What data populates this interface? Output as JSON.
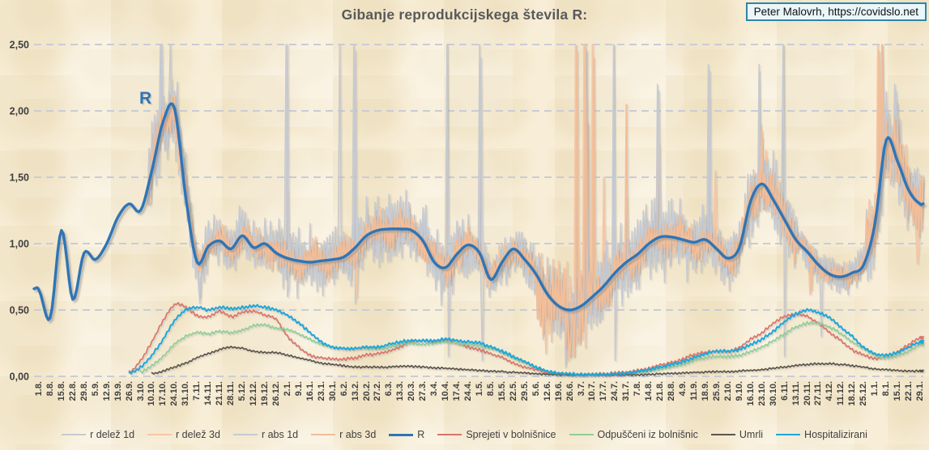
{
  "header": {
    "attribution": "Peter Malovrh, https://covidslo.net"
  },
  "annotation": {
    "r_label": "R"
  },
  "chart_data": {
    "type": "line",
    "title": "Gibanje reprodukcijskega števila R:",
    "xlabel": "",
    "ylabel": "",
    "ylim": [
      0,
      2.5
    ],
    "grid": "horizontal-dashed",
    "grid_color": "#C9CCD6",
    "legend_position": "bottom",
    "y_ticks": [
      {
        "v": 0.0,
        "label": "0,00"
      },
      {
        "v": 0.5,
        "label": "0,50"
      },
      {
        "v": 1.0,
        "label": "1,00"
      },
      {
        "v": 1.5,
        "label": "1,50"
      },
      {
        "v": 2.0,
        "label": "2,00"
      },
      {
        "v": 2.5,
        "label": "2,50"
      }
    ],
    "x_labels": [
      "1.8.",
      "8.8.",
      "15.8.",
      "22.8.",
      "29.8.",
      "5.9.",
      "12.9.",
      "19.9.",
      "26.9.",
      "3.10.",
      "10.10.",
      "17.10.",
      "24.10.",
      "31.10.",
      "7.11.",
      "14.11.",
      "21.11.",
      "28.11.",
      "5.12.",
      "12.12.",
      "19.12.",
      "26.12.",
      "2.1.",
      "9.1.",
      "16.1.",
      "23.1.",
      "30.1.",
      "6.2.",
      "13.2.",
      "20.2.",
      "27.2.",
      "6.3.",
      "13.3.",
      "20.3.",
      "27.3.",
      "3.4.",
      "10.4.",
      "17.4.",
      "24.4.",
      "1.5.",
      "8.5.",
      "15.5.",
      "22.5.",
      "29.5.",
      "5.6.",
      "12.6.",
      "19.6.",
      "26.6.",
      "3.7.",
      "10.7.",
      "17.7.",
      "24.7.",
      "31.7.",
      "7.8.",
      "14.8.",
      "21.8.",
      "28.8.",
      "4.9.",
      "11.9.",
      "18.9.",
      "25.9.",
      "2.10.",
      "9.10.",
      "16.10.",
      "23.10.",
      "30.10.",
      "6.11.",
      "13.11.",
      "20.11.",
      "27.11.",
      "4.12.",
      "11.12.",
      "18.12.",
      "25.12.",
      "1.1.",
      "8.1.",
      "15.1.",
      "22.1.",
      "29.1."
    ],
    "series": [
      {
        "name": "r delež 1d",
        "color": "#C9C9CE",
        "width": 1.5,
        "type": "noisy",
        "base": "R",
        "start": 9.6,
        "seed": 7,
        "amp_segments": [
          [
            9.6,
            0
          ],
          [
            13,
            0.3
          ],
          [
            21,
            0.18
          ],
          [
            30,
            0.22
          ],
          [
            38,
            0.22
          ],
          [
            44,
            0.18
          ],
          [
            49,
            0.28
          ],
          [
            57,
            0.25
          ],
          [
            62,
            0.22
          ],
          [
            67,
            0.25
          ],
          [
            73,
            0.12
          ],
          [
            79,
            0.3
          ]
        ],
        "spikes": [
          [
            10.7,
            2.5
          ],
          [
            11.6,
            2.5
          ],
          [
            14.2,
            0.55
          ],
          [
            21.9,
            2.5
          ],
          [
            22.05,
            0.6
          ],
          [
            26.6,
            2.5
          ],
          [
            27.9,
            2.5
          ],
          [
            28.05,
            0.55
          ],
          [
            36.1,
            2.5
          ],
          [
            36.25,
            0.15
          ],
          [
            39.05,
            2.5
          ],
          [
            39.2,
            0.12
          ],
          [
            46.6,
            0.07
          ],
          [
            47.55,
            2.5
          ],
          [
            47.7,
            0.3
          ],
          [
            50.85,
            2.5
          ],
          [
            51.0,
            0.12
          ],
          [
            54.8,
            2.2
          ],
          [
            59.3,
            2.35
          ],
          [
            63.7,
            2.35
          ],
          [
            65.85,
            2.5
          ],
          [
            66.0,
            0.15
          ],
          [
            69.3,
            0.3
          ],
          [
            75.8,
            2.2
          ]
        ]
      },
      {
        "name": "r delež 3d",
        "color": "#F5C7A4",
        "width": 1.8,
        "type": "noisy",
        "base": "R",
        "start": 9.6,
        "seed": 11,
        "amp_segments": [
          [
            9.6,
            0
          ],
          [
            13,
            0.16
          ],
          [
            21,
            0.1
          ],
          [
            30,
            0.13
          ],
          [
            38,
            0.13
          ],
          [
            44,
            0.1
          ],
          [
            49,
            0.35
          ],
          [
            57,
            0.15
          ],
          [
            62,
            0.12
          ],
          [
            67,
            0.16
          ],
          [
            73,
            0.08
          ],
          [
            79,
            0.25
          ]
        ],
        "spikes": [
          [
            22.0,
            1.4
          ],
          [
            28.1,
            0.6
          ],
          [
            46.9,
            0.12
          ],
          [
            47.5,
            2.5
          ],
          [
            48.3,
            2.5
          ],
          [
            48.65,
            1.9
          ],
          [
            49.0,
            2.5
          ],
          [
            50.0,
            1.5
          ],
          [
            52.0,
            1.35
          ],
          [
            54.9,
            1.75
          ],
          [
            59.9,
            1.55
          ],
          [
            63.9,
            1.9
          ],
          [
            64.4,
            1.7
          ],
          [
            68.3,
            0.62
          ],
          [
            74.3,
            2.5
          ],
          [
            74.6,
            2.5
          ],
          [
            76.0,
            1.95
          ],
          [
            77.8,
            0.85
          ]
        ]
      },
      {
        "name": "r abs 1d",
        "color": "#C5CAD3",
        "width": 1.5,
        "type": "noisy",
        "base": "R",
        "start": 9.6,
        "seed": 23,
        "amp_segments": [
          [
            9.6,
            0
          ],
          [
            13,
            0.28
          ],
          [
            21,
            0.17
          ],
          [
            30,
            0.21
          ],
          [
            38,
            0.21
          ],
          [
            44,
            0.17
          ],
          [
            49,
            0.26
          ],
          [
            57,
            0.24
          ],
          [
            62,
            0.21
          ],
          [
            67,
            0.24
          ],
          [
            73,
            0.11
          ],
          [
            79,
            0.28
          ]
        ],
        "spikes": [
          [
            10.9,
            2.5
          ],
          [
            14.25,
            0.6
          ],
          [
            21.95,
            2.5
          ],
          [
            27.95,
            2.45
          ],
          [
            36.15,
            2.5
          ],
          [
            39.1,
            2.4
          ],
          [
            46.65,
            0.1
          ],
          [
            48.45,
            2.45
          ],
          [
            50.9,
            2.5
          ],
          [
            54.85,
            2.15
          ],
          [
            59.35,
            2.3
          ],
          [
            63.75,
            2.3
          ],
          [
            65.9,
            2.5
          ],
          [
            75.85,
            2.15
          ]
        ]
      },
      {
        "name": "r abs 3d",
        "color": "#F2BE99",
        "width": 1.8,
        "type": "noisy",
        "base": "R",
        "start": 9.6,
        "seed": 31,
        "amp_segments": [
          [
            9.6,
            0
          ],
          [
            13,
            0.15
          ],
          [
            21,
            0.09
          ],
          [
            30,
            0.12
          ],
          [
            38,
            0.12
          ],
          [
            44,
            0.09
          ],
          [
            49,
            0.32
          ],
          [
            57,
            0.14
          ],
          [
            62,
            0.11
          ],
          [
            67,
            0.15
          ],
          [
            73,
            0.07
          ],
          [
            79,
            0.22
          ]
        ],
        "spikes": [
          [
            47.0,
            0.15
          ],
          [
            47.6,
            2.45
          ],
          [
            48.4,
            2.5
          ],
          [
            49.1,
            2.4
          ],
          [
            51.95,
            2.05
          ],
          [
            63.95,
            1.85
          ],
          [
            68.35,
            0.65
          ],
          [
            74.35,
            2.45
          ],
          [
            74.65,
            2.5
          ],
          [
            76.05,
            1.9
          ]
        ]
      },
      {
        "name": "R",
        "color": "#2E75B6",
        "width": 3.4,
        "type": "main",
        "shadow": true,
        "lead_in": [
          -0.43,
          0.66
        ],
        "values": [
          0.65,
          0.44,
          1.1,
          0.58,
          0.93,
          0.88,
          1.0,
          1.2,
          1.3,
          1.25,
          1.55,
          1.92,
          2.02,
          1.35,
          0.86,
          0.98,
          1.02,
          0.96,
          1.06,
          0.97,
          1.0,
          0.93,
          0.89,
          0.87,
          0.86,
          0.87,
          0.88,
          0.9,
          0.97,
          1.06,
          1.1,
          1.11,
          1.11,
          1.1,
          1.02,
          0.86,
          0.82,
          0.92,
          0.99,
          0.93,
          0.73,
          0.86,
          0.96,
          0.88,
          0.77,
          0.62,
          0.53,
          0.5,
          0.53,
          0.6,
          0.68,
          0.78,
          0.86,
          0.92,
          1.0,
          1.05,
          1.05,
          1.03,
          1.01,
          1.03,
          0.96,
          0.89,
          0.97,
          1.32,
          1.45,
          1.33,
          1.18,
          1.03,
          0.94,
          0.84,
          0.77,
          0.75,
          0.78,
          0.84,
          1.15,
          1.78,
          1.62,
          1.4,
          1.3
        ]
      },
      {
        "name": "Sprejeti v bolnišnice",
        "color": "#D9756A",
        "width": 1.7,
        "type": "plain",
        "wiggle": 0.012,
        "seed": 5,
        "values": [
          null,
          null,
          null,
          null,
          null,
          null,
          null,
          null,
          0.03,
          0.12,
          0.26,
          0.42,
          0.54,
          0.52,
          0.46,
          0.45,
          0.49,
          0.45,
          0.48,
          0.49,
          0.46,
          0.43,
          0.3,
          0.22,
          0.16,
          0.14,
          0.13,
          0.13,
          0.14,
          0.16,
          0.17,
          0.19,
          0.22,
          0.26,
          0.27,
          0.26,
          0.27,
          0.25,
          0.22,
          0.2,
          0.17,
          0.14,
          0.1,
          0.07,
          0.05,
          0.03,
          0.02,
          0.015,
          0.015,
          0.02,
          0.02,
          0.025,
          0.03,
          0.045,
          0.06,
          0.085,
          0.105,
          0.13,
          0.165,
          0.18,
          0.19,
          0.185,
          0.22,
          0.28,
          0.33,
          0.4,
          0.45,
          0.47,
          0.45,
          0.4,
          0.33,
          0.27,
          0.2,
          0.16,
          0.135,
          0.15,
          0.185,
          0.24,
          0.29
        ]
      },
      {
        "name": "Odpuščeni iz bolnišnic",
        "color": "#90CF97",
        "width": 1.7,
        "type": "plain",
        "wiggle": 0.012,
        "seed": 9,
        "values": [
          null,
          null,
          null,
          null,
          null,
          null,
          null,
          null,
          null,
          0.03,
          0.08,
          0.15,
          0.24,
          0.3,
          0.33,
          0.32,
          0.34,
          0.33,
          0.35,
          0.38,
          0.39,
          0.36,
          0.35,
          0.32,
          0.28,
          0.24,
          0.22,
          0.21,
          0.21,
          0.21,
          0.21,
          0.22,
          0.24,
          0.25,
          0.24,
          0.25,
          0.26,
          0.25,
          0.24,
          0.23,
          0.21,
          0.18,
          0.14,
          0.1,
          0.07,
          0.04,
          0.025,
          0.02,
          0.015,
          0.015,
          0.015,
          0.015,
          0.02,
          0.03,
          0.04,
          0.055,
          0.07,
          0.09,
          0.12,
          0.14,
          0.15,
          0.15,
          0.16,
          0.19,
          0.22,
          0.27,
          0.32,
          0.37,
          0.4,
          0.4,
          0.37,
          0.32,
          0.26,
          0.21,
          0.16,
          0.14,
          0.155,
          0.19,
          0.24
        ]
      },
      {
        "name": "Umrli",
        "color": "#5B564E",
        "width": 1.7,
        "type": "plain",
        "wiggle": 0.008,
        "seed": 13,
        "values": [
          null,
          null,
          null,
          null,
          null,
          null,
          null,
          null,
          null,
          null,
          0.02,
          0.04,
          0.07,
          0.1,
          0.14,
          0.17,
          0.2,
          0.22,
          0.21,
          0.19,
          0.18,
          0.18,
          0.16,
          0.14,
          0.12,
          0.1,
          0.09,
          0.08,
          0.07,
          0.07,
          0.07,
          0.07,
          0.075,
          0.075,
          0.07,
          0.065,
          0.06,
          0.055,
          0.05,
          0.045,
          0.04,
          0.035,
          0.03,
          0.025,
          0.02,
          0.015,
          0.012,
          0.01,
          0.01,
          0.01,
          0.01,
          0.01,
          0.01,
          0.012,
          0.015,
          0.02,
          0.022,
          0.025,
          0.03,
          0.032,
          0.035,
          0.035,
          0.04,
          0.045,
          0.05,
          0.06,
          0.07,
          0.08,
          0.09,
          0.095,
          0.095,
          0.09,
          0.08,
          0.07,
          0.055,
          0.05,
          0.045,
          0.04,
          0.04
        ]
      },
      {
        "name": "Hospitalizirani",
        "color": "#1FA7DC",
        "width": 2.0,
        "type": "plain",
        "wiggle": 0.012,
        "seed": 17,
        "values": [
          null,
          null,
          null,
          null,
          null,
          null,
          null,
          null,
          0.02,
          0.07,
          0.16,
          0.28,
          0.42,
          0.5,
          0.52,
          0.5,
          0.52,
          0.51,
          0.52,
          0.53,
          0.52,
          0.5,
          0.46,
          0.4,
          0.33,
          0.26,
          0.22,
          0.21,
          0.21,
          0.22,
          0.22,
          0.24,
          0.26,
          0.27,
          0.27,
          0.27,
          0.28,
          0.27,
          0.26,
          0.25,
          0.22,
          0.19,
          0.15,
          0.11,
          0.07,
          0.04,
          0.025,
          0.02,
          0.015,
          0.015,
          0.015,
          0.02,
          0.025,
          0.035,
          0.05,
          0.07,
          0.09,
          0.11,
          0.14,
          0.17,
          0.19,
          0.19,
          0.2,
          0.24,
          0.28,
          0.34,
          0.41,
          0.47,
          0.5,
          0.48,
          0.44,
          0.37,
          0.3,
          0.22,
          0.17,
          0.16,
          0.18,
          0.22,
          0.26
        ]
      }
    ]
  }
}
